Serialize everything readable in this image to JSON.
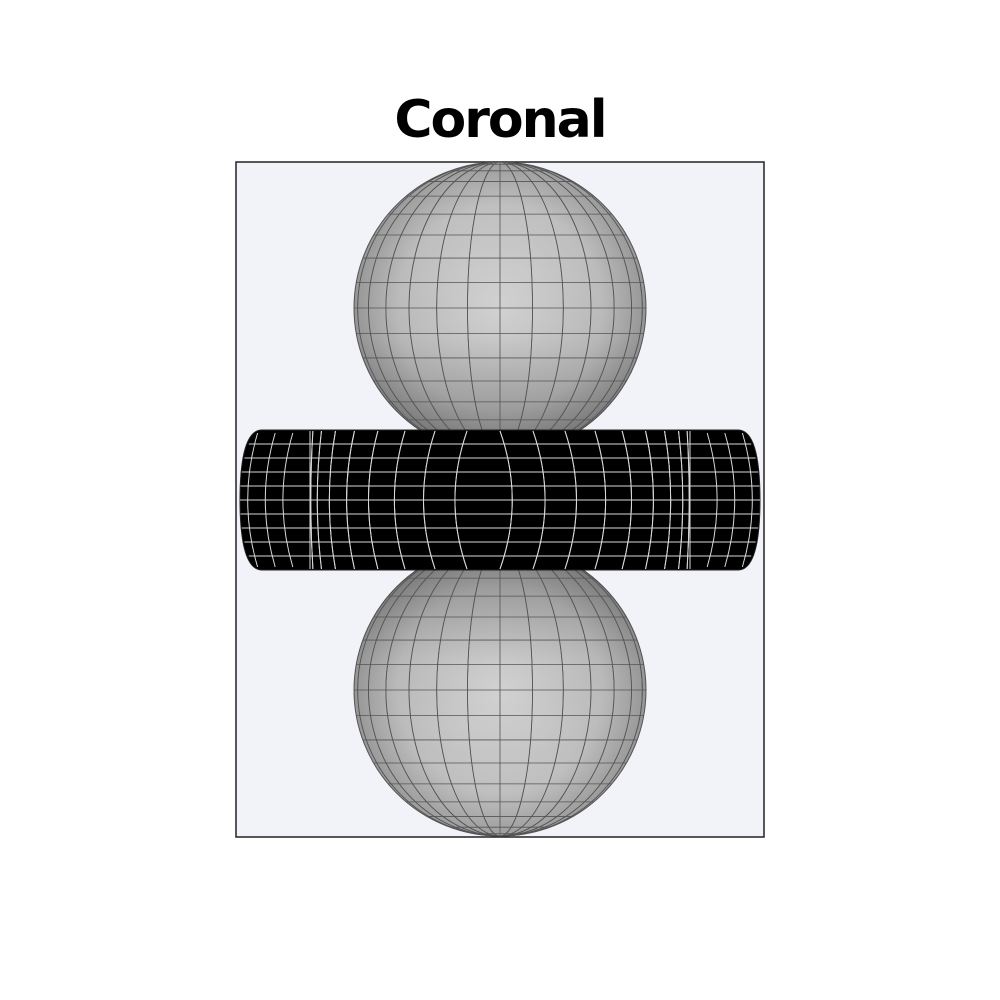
{
  "title": "Coronal",
  "colors": {
    "panel_background": "#f2f3f8",
    "panel_border": "#222222",
    "lobe_fill_light": "#d6d6d6",
    "lobe_fill_dark": "#9a9a9a",
    "lobe_grid": "#555555",
    "torus_fill": "#000000",
    "torus_grid": "#d8d8d8"
  },
  "shapes": {
    "upper_lobe": "sphere",
    "torus": "torus",
    "lower_lobe": "sphere"
  }
}
